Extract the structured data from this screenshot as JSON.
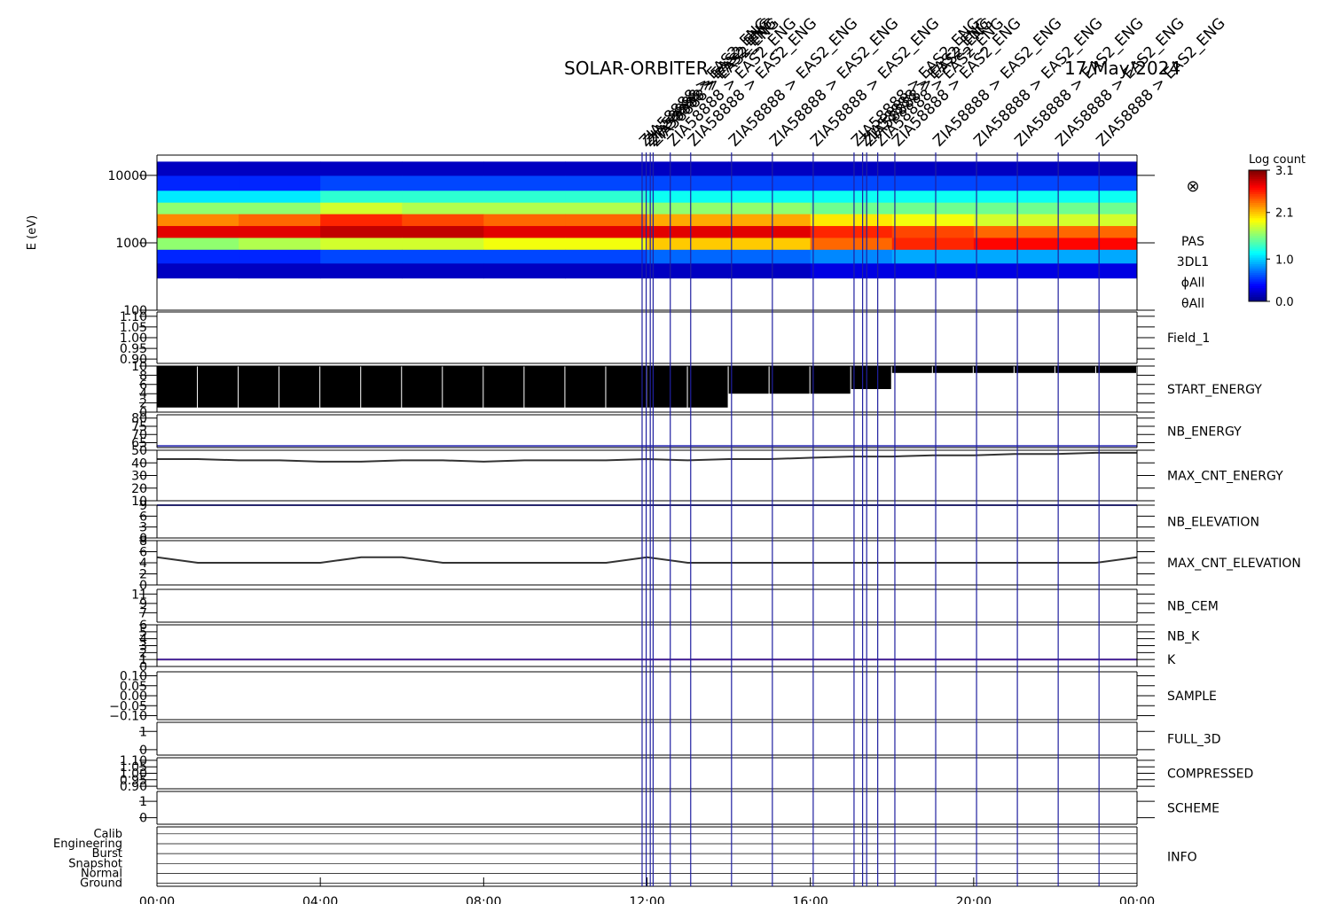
{
  "chart_data": {
    "type": "multi-panel",
    "title": "SOLAR-ORBITER",
    "date": "17/May/2024",
    "xlim": [
      0,
      24
    ],
    "xticks": [
      {
        "value": 0,
        "label": "00:00"
      },
      {
        "value": 4,
        "label": "04:00"
      },
      {
        "value": 8,
        "label": "08:00"
      },
      {
        "value": 12,
        "label": "12:00"
      },
      {
        "value": 16,
        "label": "16:00"
      },
      {
        "value": 20,
        "label": "20:00"
      },
      {
        "value": 24,
        "label": "00:00"
      }
    ],
    "x": [
      0,
      1,
      2,
      3,
      4,
      5,
      6,
      7,
      8,
      9,
      10,
      11,
      12,
      13,
      14,
      15,
      16,
      17,
      18,
      19,
      20,
      21,
      22,
      23,
      24
    ],
    "events": [
      {
        "x": 11.88,
        "label": "ZIA58888 > EAS2_ENG"
      },
      {
        "x": 11.98,
        "label": "ZIA58888 > EAS2_ENG"
      },
      {
        "x": 12.08,
        "label": "ZIA58888 > EAS2_ENG"
      },
      {
        "x": 12.15,
        "label": "ZIA58888 > EAS2_ENG"
      },
      {
        "x": 12.57,
        "label": "ZIA58888 > EAS2_ENG"
      },
      {
        "x": 13.07,
        "label": "ZIA58888 > EAS2_ENG"
      },
      {
        "x": 14.07,
        "label": "ZIA58888 > EAS2_ENG"
      },
      {
        "x": 15.07,
        "label": "ZIA58888 > EAS2_ENG"
      },
      {
        "x": 16.07,
        "label": "ZIA58888 > EAS2_ENG"
      },
      {
        "x": 17.07,
        "label": "ZIA58888 > EAS2_ENG"
      },
      {
        "x": 17.28,
        "label": "ZIA58888 > EAS2_ENG"
      },
      {
        "x": 17.38,
        "label": "ZIA58888 > EAS2_ENG"
      },
      {
        "x": 17.65,
        "label": "ZIA58888 > EAS2_ENG"
      },
      {
        "x": 18.07,
        "label": "ZIA58888 > EAS2_ENG"
      },
      {
        "x": 19.07,
        "label": "ZIA58888 > EAS2_ENG"
      },
      {
        "x": 20.07,
        "label": "ZIA58888 > EAS2_ENG"
      },
      {
        "x": 21.07,
        "label": "ZIA58888 > EAS2_ENG"
      },
      {
        "x": 22.07,
        "label": "ZIA58888 > EAS2_ENG"
      },
      {
        "x": 23.07,
        "label": "ZIA58888 > EAS2_ENG"
      }
    ],
    "panels": [
      {
        "type": "spectrogram",
        "ylabel": "E (eV)",
        "log": true,
        "ylim": [
          100,
          20000
        ],
        "yticks": [
          100,
          1000,
          10000
        ],
        "labels": [
          {
            "text": "PAS",
            "color": "#000000"
          },
          {
            "text": "3DL1",
            "color": "#000000"
          },
          {
            "text": "ϕAll",
            "color": "#000000"
          },
          {
            "text": "θAll",
            "color": "#000000"
          }
        ],
        "symbol": "⊗",
        "time_bins": [
          0,
          2,
          4,
          6,
          8,
          10,
          12,
          14,
          16,
          18,
          20,
          22,
          24
        ],
        "energy_bins": [
          300,
          500,
          800,
          1200,
          1800,
          2700,
          4000,
          6000,
          10000,
          16000
        ],
        "z": [
          [
            0.2,
            0.5,
            1.6,
            2.8,
            2.3,
            1.6,
            1.1,
            0.5,
            0.2
          ],
          [
            0.2,
            0.5,
            1.7,
            2.8,
            2.4,
            1.6,
            1.1,
            0.5,
            0.2
          ],
          [
            0.2,
            0.6,
            1.8,
            2.9,
            2.6,
            1.8,
            1.3,
            0.6,
            0.2
          ],
          [
            0.2,
            0.6,
            1.8,
            2.9,
            2.5,
            1.7,
            1.3,
            0.6,
            0.2
          ],
          [
            0.2,
            0.6,
            1.9,
            2.8,
            2.4,
            1.7,
            1.3,
            0.6,
            0.2
          ],
          [
            0.2,
            0.6,
            1.9,
            2.8,
            2.4,
            1.7,
            1.3,
            0.6,
            0.2
          ],
          [
            0.2,
            0.7,
            2.1,
            2.8,
            2.2,
            1.6,
            1.2,
            0.6,
            0.2
          ],
          [
            0.2,
            0.7,
            2.1,
            2.8,
            2.2,
            1.6,
            1.2,
            0.6,
            0.2
          ],
          [
            0.3,
            0.8,
            2.4,
            2.6,
            2.0,
            1.5,
            1.2,
            0.6,
            0.2
          ],
          [
            0.3,
            0.9,
            2.6,
            2.5,
            1.9,
            1.5,
            1.2,
            0.6,
            0.2
          ],
          [
            0.3,
            0.9,
            2.7,
            2.4,
            1.8,
            1.5,
            1.2,
            0.6,
            0.2
          ],
          [
            0.3,
            0.9,
            2.7,
            2.4,
            1.8,
            1.5,
            1.2,
            0.6,
            0.2
          ]
        ],
        "colorbar_label": "Log count",
        "zlim": [
          0,
          3.1
        ],
        "zticks": [
          {
            "value": 0,
            "label": "0.0"
          },
          {
            "value": 1,
            "label": "1.0"
          },
          {
            "value": 2.1,
            "label": "2.1"
          },
          {
            "value": 3.1,
            "label": "3.1"
          }
        ]
      },
      {
        "type": "empty",
        "labels": [
          {
            "text": "Field_1",
            "color": "#2020b0"
          }
        ],
        "ylim": [
          0.88,
          1.12
        ],
        "yticks": [
          {
            "value": 0.9,
            "label": "0.90"
          },
          {
            "value": 0.95,
            "label": "0.95"
          },
          {
            "value": 1.0,
            "label": "1.00"
          },
          {
            "value": 1.05,
            "label": "1.05"
          },
          {
            "value": 1.1,
            "label": "1.10"
          }
        ]
      },
      {
        "type": "range",
        "labels": [
          {
            "text": "START_ENERGY",
            "color": "#000000"
          }
        ],
        "ylim": [
          0,
          10
        ],
        "yticks": [
          0,
          2,
          4,
          6,
          8,
          10
        ],
        "bins": [
          0,
          1,
          2,
          3,
          4,
          5,
          6,
          7,
          8,
          9,
          10,
          11,
          12,
          13,
          14,
          15,
          16,
          17,
          18,
          19,
          20,
          21,
          22,
          23,
          24
        ],
        "low": [
          1,
          1,
          1,
          1,
          1,
          1,
          1,
          1,
          1,
          1,
          1,
          1,
          1,
          1,
          4,
          4,
          4,
          5,
          8.5,
          8.5,
          8.5,
          8.5,
          8.5,
          8.5
        ],
        "high": [
          10,
          10,
          10,
          10,
          10,
          10,
          10,
          10,
          10,
          10,
          10,
          10,
          10,
          10,
          10,
          10,
          10,
          10,
          10,
          10,
          10,
          10,
          10,
          10
        ],
        "color": "#000000"
      },
      {
        "type": "line",
        "labels": [
          {
            "text": "NB_ENERGY",
            "color": "#2020b0"
          }
        ],
        "ylim": [
          62,
          82
        ],
        "yticks": [
          65,
          70,
          75,
          80
        ],
        "series": [
          {
            "color": "#2020b0",
            "values": [
              63,
              63,
              63,
              63,
              63,
              63,
              63,
              63,
              63,
              63,
              63,
              63,
              63,
              63,
              63,
              63,
              63,
              63,
              63,
              63,
              63,
              63,
              63,
              63,
              63
            ]
          }
        ]
      },
      {
        "type": "line",
        "labels": [
          {
            "text": "MAX_CNT_ENERGY",
            "color": "#000000"
          }
        ],
        "ylim": [
          10,
          50
        ],
        "yticks": [
          10,
          20,
          30,
          40,
          50
        ],
        "series": [
          {
            "color": "#000000",
            "values": [
              43,
              43,
              42,
              42,
              41,
              41,
              42,
              42,
              41,
              42,
              42,
              42,
              43,
              42,
              43,
              43,
              44,
              45,
              45,
              46,
              46,
              47,
              47,
              48,
              48
            ]
          }
        ]
      },
      {
        "type": "line",
        "labels": [
          {
            "text": "NB_ELEVATION",
            "color": "#2020b0"
          }
        ],
        "ylim": [
          0,
          9
        ],
        "yticks": [
          0,
          3,
          6,
          9
        ],
        "series": [
          {
            "color": "#2020d0",
            "values": [
              9,
              9,
              9,
              9,
              9,
              9,
              9,
              9,
              9,
              9,
              9,
              9,
              9,
              9,
              9,
              9,
              9,
              9,
              9,
              9,
              9,
              9,
              9,
              9,
              9
            ]
          }
        ]
      },
      {
        "type": "line",
        "labels": [
          {
            "text": "MAX_CNT_ELEVATION",
            "color": "#000000"
          }
        ],
        "ylim": [
          0,
          8
        ],
        "yticks": [
          0,
          2,
          4,
          6,
          8
        ],
        "series": [
          {
            "color": "#000000",
            "values": [
              5,
              4,
              4,
              4,
              4,
              5,
              5,
              4,
              4,
              4,
              4,
              4,
              5,
              4,
              4,
              4,
              4,
              4,
              4,
              4,
              4,
              4,
              4,
              4,
              5
            ]
          }
        ]
      },
      {
        "type": "empty",
        "labels": [
          {
            "text": "NB_CEM",
            "color": "#2020b0"
          }
        ],
        "ylim": [
          5,
          12
        ],
        "yticks": [
          7,
          9,
          11
        ]
      },
      {
        "type": "line",
        "labels": [
          {
            "text": "NB_K",
            "color": "#d02020"
          },
          {
            "text": "K",
            "color": "#2020b0"
          }
        ],
        "ylim": [
          0,
          6
        ],
        "yticks": [
          0,
          1,
          2,
          3,
          4,
          5,
          6
        ],
        "series": [
          {
            "color": "#d02020",
            "values": [
              1,
              1,
              1,
              1,
              1,
              1,
              1,
              1,
              1,
              1,
              1,
              1,
              1,
              1,
              1,
              1,
              1,
              1,
              1,
              1,
              1,
              1,
              1,
              1,
              1
            ]
          },
          {
            "color": "#2020b0",
            "values": [
              1,
              1,
              1,
              1,
              1,
              1,
              1,
              1,
              1,
              1,
              1,
              1,
              1,
              1,
              1,
              1,
              1,
              1,
              1,
              1,
              1,
              1,
              1,
              1,
              1
            ]
          }
        ]
      },
      {
        "type": "empty",
        "labels": [
          {
            "text": "SAMPLE",
            "color": "#2020b0"
          }
        ],
        "ylim": [
          -0.12,
          0.12
        ],
        "yticks": [
          {
            "value": -0.1,
            "label": "−0.10"
          },
          {
            "value": -0.05,
            "label": "−0.05"
          },
          {
            "value": 0,
            "label": "0.00"
          },
          {
            "value": 0.05,
            "label": "0.05"
          },
          {
            "value": 0.1,
            "label": "0.10"
          }
        ]
      },
      {
        "type": "empty",
        "labels": [
          {
            "text": "FULL_3D",
            "color": "#2020b0"
          }
        ],
        "ylim": [
          -0.3,
          1.5
        ],
        "yticks": [
          0,
          1
        ]
      },
      {
        "type": "empty",
        "labels": [
          {
            "text": "COMPRESSED",
            "color": "#000000"
          }
        ],
        "ylim": [
          0.88,
          1.12
        ],
        "yticks": [
          {
            "value": 0.9,
            "label": "0.90"
          },
          {
            "value": 0.95,
            "label": "0.95"
          },
          {
            "value": 1.0,
            "label": "1.00"
          },
          {
            "value": 1.05,
            "label": "1.05"
          },
          {
            "value": 1.1,
            "label": "1.10"
          }
        ]
      },
      {
        "type": "empty",
        "labels": [
          {
            "text": "SCHEME",
            "color": "#000000"
          }
        ],
        "ylim": [
          -0.4,
          1.6
        ],
        "yticks": [
          0,
          1
        ]
      },
      {
        "type": "category",
        "labels": [
          {
            "text": "INFO",
            "color": "#000000"
          }
        ],
        "categories": [
          "Calib",
          "Engineering",
          "Burst",
          "Snapshot",
          "Normal",
          "Ground"
        ]
      }
    ]
  }
}
